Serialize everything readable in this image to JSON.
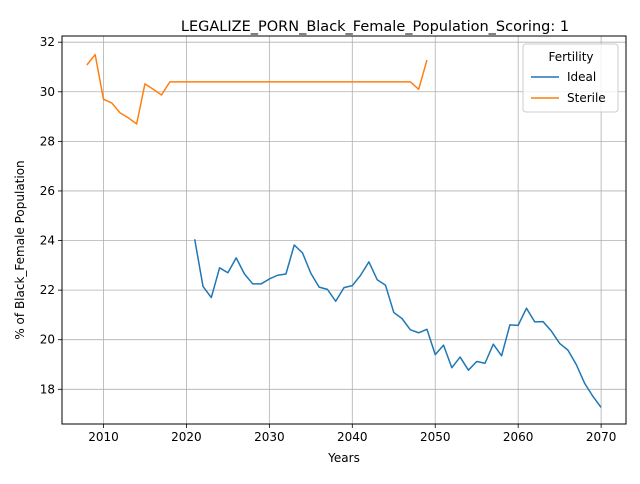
{
  "chart_data": {
    "type": "line",
    "title": "LEGALIZE_PORN_Black_Female_Population_Scoring: 1",
    "xlabel": "Years",
    "ylabel": "% of Black_Female Population",
    "xlim": [
      2005,
      2073
    ],
    "ylim": [
      16.6,
      32.25
    ],
    "xticks": [
      2010,
      2020,
      2030,
      2040,
      2050,
      2060,
      2070
    ],
    "yticks": [
      18,
      20,
      22,
      24,
      26,
      28,
      30,
      32
    ],
    "grid": true,
    "legend": {
      "title": "Fertility",
      "placement": "top-right"
    },
    "series": [
      {
        "name": "Ideal",
        "color": "#1f77b4",
        "x": [
          2021,
          2022,
          2023,
          2024,
          2025,
          2026,
          2027,
          2028,
          2029,
          2030,
          2031,
          2032,
          2033,
          2034,
          2035,
          2036,
          2037,
          2038,
          2039,
          2040,
          2041,
          2042,
          2043,
          2044,
          2045,
          2046,
          2047,
          2048,
          2049,
          2050,
          2051,
          2052,
          2053,
          2054,
          2055,
          2056,
          2057,
          2058,
          2059,
          2060,
          2061,
          2062,
          2063,
          2064,
          2065,
          2066,
          2067,
          2068,
          2069,
          2070
        ],
        "y": [
          24.05,
          22.15,
          21.7,
          22.9,
          22.7,
          23.3,
          22.65,
          22.25,
          22.25,
          22.45,
          22.6,
          22.65,
          23.82,
          23.5,
          22.68,
          22.12,
          22.03,
          21.55,
          22.1,
          22.18,
          22.6,
          23.14,
          22.42,
          22.2,
          21.1,
          20.85,
          20.4,
          20.28,
          20.42,
          19.4,
          19.78,
          18.87,
          19.3,
          18.77,
          19.12,
          19.05,
          19.82,
          19.35,
          20.6,
          20.58,
          21.27,
          20.72,
          20.73,
          20.35,
          19.85,
          19.58,
          19.0,
          18.25,
          17.72,
          17.27
        ]
      },
      {
        "name": "Sterile",
        "color": "#ff7f0e",
        "x": [
          2008,
          2009,
          2010,
          2011,
          2012,
          2013,
          2014,
          2015,
          2016,
          2017,
          2018,
          2019,
          2020,
          2021,
          2022,
          2023,
          2024,
          2025,
          2026,
          2027,
          2028,
          2029,
          2030,
          2031,
          2032,
          2033,
          2034,
          2035,
          2036,
          2037,
          2038,
          2039,
          2040,
          2041,
          2042,
          2043,
          2044,
          2045,
          2046,
          2047,
          2048,
          2049
        ],
        "y": [
          31.08,
          31.5,
          29.7,
          29.55,
          29.15,
          28.95,
          28.7,
          30.32,
          30.1,
          29.87,
          30.4,
          30.4,
          30.4,
          30.4,
          30.4,
          30.4,
          30.4,
          30.4,
          30.4,
          30.4,
          30.4,
          30.4,
          30.4,
          30.4,
          30.4,
          30.4,
          30.4,
          30.4,
          30.4,
          30.4,
          30.4,
          30.4,
          30.4,
          30.4,
          30.4,
          30.4,
          30.4,
          30.4,
          30.4,
          30.4,
          30.1,
          31.28
        ]
      }
    ]
  }
}
